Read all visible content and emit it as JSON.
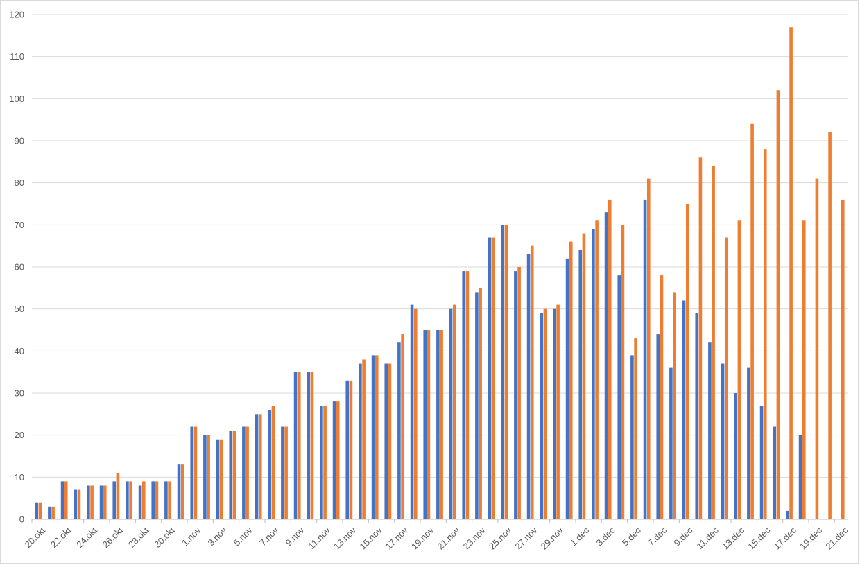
{
  "chart_data": {
    "type": "bar",
    "title": "",
    "xlabel": "",
    "ylabel": "",
    "ylim": [
      0,
      120
    ],
    "yticks": [
      0,
      10,
      20,
      30,
      40,
      50,
      60,
      70,
      80,
      90,
      100,
      110,
      120
    ],
    "grid": true,
    "legend": "none",
    "categories": [
      "20.okt",
      "21.okt",
      "22.okt",
      "23.okt",
      "24.okt",
      "25.okt",
      "26.okt",
      "27.okt",
      "28.okt",
      "29.okt",
      "30.okt",
      "31.okt",
      "1.nov",
      "2.nov",
      "3.nov",
      "4.nov",
      "5.nov",
      "6.nov",
      "7.nov",
      "8.nov",
      "9.nov",
      "10.nov",
      "11.nov",
      "12.nov",
      "13.nov",
      "14.nov",
      "15.nov",
      "16.nov",
      "17.nov",
      "18.nov",
      "19.nov",
      "20.nov",
      "21.nov",
      "22.nov",
      "23.nov",
      "24.nov",
      "25.nov",
      "26.nov",
      "27.nov",
      "28.nov",
      "29.nov",
      "30.nov",
      "1.dec",
      "2.dec",
      "3.dec",
      "4.dec",
      "5.dec",
      "6.dec",
      "7.dec",
      "8.dec",
      "9.dec",
      "10.dec",
      "11.dec",
      "12.dec",
      "13.dec",
      "14.dec",
      "15.dec",
      "16.dec",
      "17.dec",
      "18.dec",
      "19.dec",
      "20.dec",
      "21.dec"
    ],
    "xtick_labels": [
      "20.okt",
      "22.okt",
      "24.okt",
      "26.okt",
      "28.okt",
      "30.okt",
      "1.nov",
      "3.nov",
      "5.nov",
      "7.nov",
      "9.nov",
      "11.nov",
      "13.nov",
      "15.nov",
      "17.nov",
      "19.nov",
      "21.nov",
      "23.nov",
      "25.nov",
      "27.nov",
      "29.nov",
      "1.dec",
      "3.dec",
      "5.dec",
      "7.dec",
      "9.dec",
      "11.dec",
      "13.dec",
      "15.dec",
      "17.dec",
      "19.dec",
      "21.dec"
    ],
    "series": [
      {
        "color": "#4472c4",
        "values": [
          4,
          3,
          9,
          7,
          8,
          8,
          9,
          9,
          8,
          9,
          9,
          13,
          22,
          20,
          19,
          21,
          22,
          25,
          26,
          22,
          35,
          35,
          27,
          28,
          33,
          37,
          39,
          37,
          42,
          51,
          45,
          45,
          50,
          59,
          54,
          67,
          70,
          59,
          63,
          49,
          50,
          62,
          64,
          69,
          73,
          58,
          39,
          76,
          44,
          36,
          52,
          49,
          42,
          37,
          30,
          36,
          27,
          22,
          2,
          20,
          null,
          null,
          null
        ]
      },
      {
        "color": "#ed7d31",
        "values": [
          4,
          3,
          9,
          7,
          8,
          8,
          11,
          9,
          9,
          9,
          9,
          13,
          22,
          20,
          19,
          21,
          22,
          25,
          27,
          22,
          35,
          35,
          27,
          28,
          33,
          38,
          39,
          37,
          44,
          50,
          45,
          45,
          51,
          59,
          55,
          67,
          70,
          60,
          65,
          50,
          51,
          66,
          68,
          71,
          76,
          70,
          43,
          81,
          58,
          54,
          75,
          86,
          84,
          67,
          71,
          94,
          88,
          102,
          117,
          71,
          81,
          92,
          76
        ]
      }
    ]
  }
}
